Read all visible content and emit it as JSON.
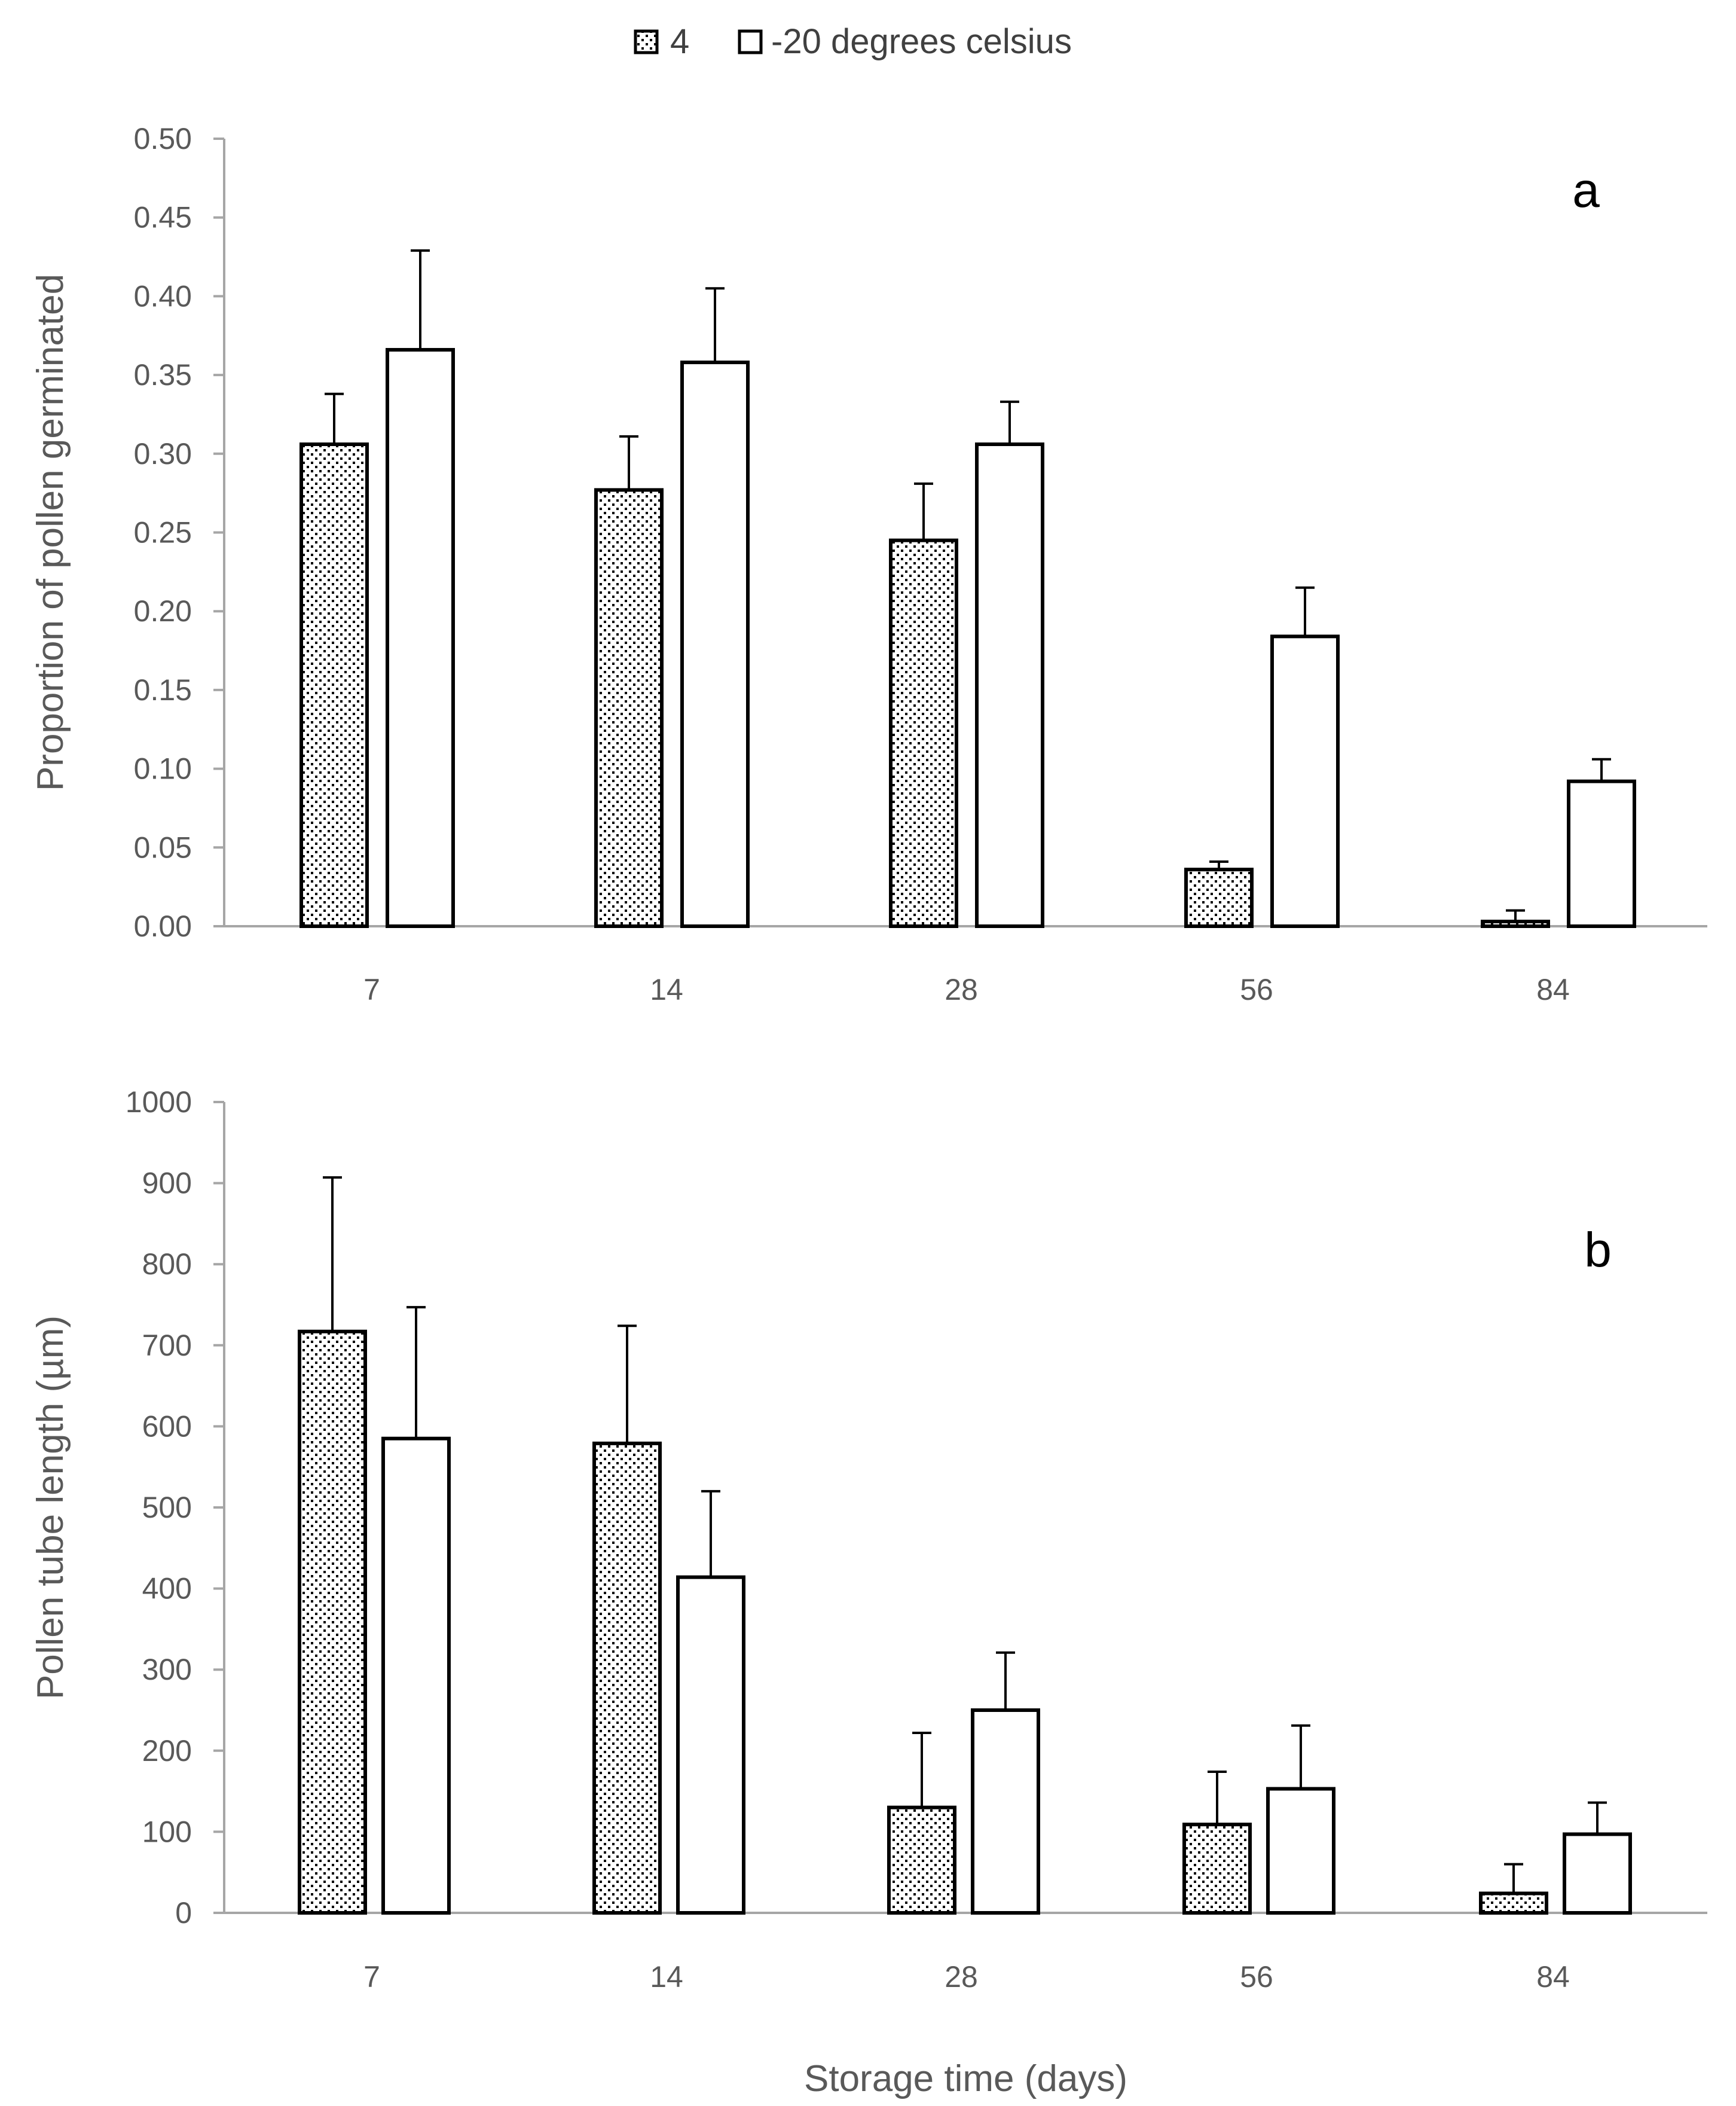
{
  "legend": {
    "items": [
      {
        "label": "4",
        "pattern": "dotted",
        "color": "#000000"
      },
      {
        "label": "-20 degrees celsius",
        "pattern": "none",
        "color": "#ffffff"
      }
    ]
  },
  "colors": {
    "axis": "#a6a6a6",
    "text": "#595959",
    "bar_edge": "#000000",
    "dot": "#000000",
    "bar_fill_b": "#ffffff"
  },
  "chart_data": [
    {
      "type": "bar",
      "panel_label": "a",
      "title": "",
      "xlabel": "",
      "ylabel": "Proportion of pollen germinated",
      "categories": [
        "7",
        "14",
        "28",
        "56",
        "84"
      ],
      "ylim": [
        0,
        0.5
      ],
      "yticks": [
        "0.00",
        "0.05",
        "0.10",
        "0.15",
        "0.20",
        "0.25",
        "0.30",
        "0.35",
        "0.40",
        "0.45",
        "0.50"
      ],
      "ytick_values": [
        0,
        0.05,
        0.1,
        0.15,
        0.2,
        0.25,
        0.3,
        0.35,
        0.4,
        0.45,
        0.5
      ],
      "series": [
        {
          "name": "4",
          "values": [
            0.306,
            0.277,
            0.245,
            0.036,
            0.003
          ],
          "errors": [
            0.032,
            0.034,
            0.036,
            0.005,
            0.007
          ]
        },
        {
          "name": "-20 degrees celsius",
          "values": [
            0.366,
            0.358,
            0.306,
            0.184,
            0.092
          ],
          "errors": [
            0.063,
            0.047,
            0.027,
            0.031,
            0.014
          ]
        }
      ]
    },
    {
      "type": "bar",
      "panel_label": "b",
      "title": "",
      "xlabel": "Storage time (days)",
      "ylabel": "Pollen tube length (µm)",
      "categories": [
        "7",
        "14",
        "28",
        "56",
        "84"
      ],
      "ylim": [
        0,
        1000
      ],
      "yticks": [
        "0",
        "100",
        "200",
        "300",
        "400",
        "500",
        "600",
        "700",
        "800",
        "900",
        "1000"
      ],
      "ytick_values": [
        0,
        100,
        200,
        300,
        400,
        500,
        600,
        700,
        800,
        900,
        1000
      ],
      "series": [
        {
          "name": "4",
          "values": [
            717,
            579,
            130,
            109,
            24
          ],
          "errors": [
            190,
            145,
            92,
            65,
            36
          ]
        },
        {
          "name": "-20 degrees celsius",
          "values": [
            585,
            414,
            250,
            153,
            97
          ],
          "errors": [
            162,
            106,
            71,
            78,
            39
          ]
        }
      ]
    }
  ]
}
